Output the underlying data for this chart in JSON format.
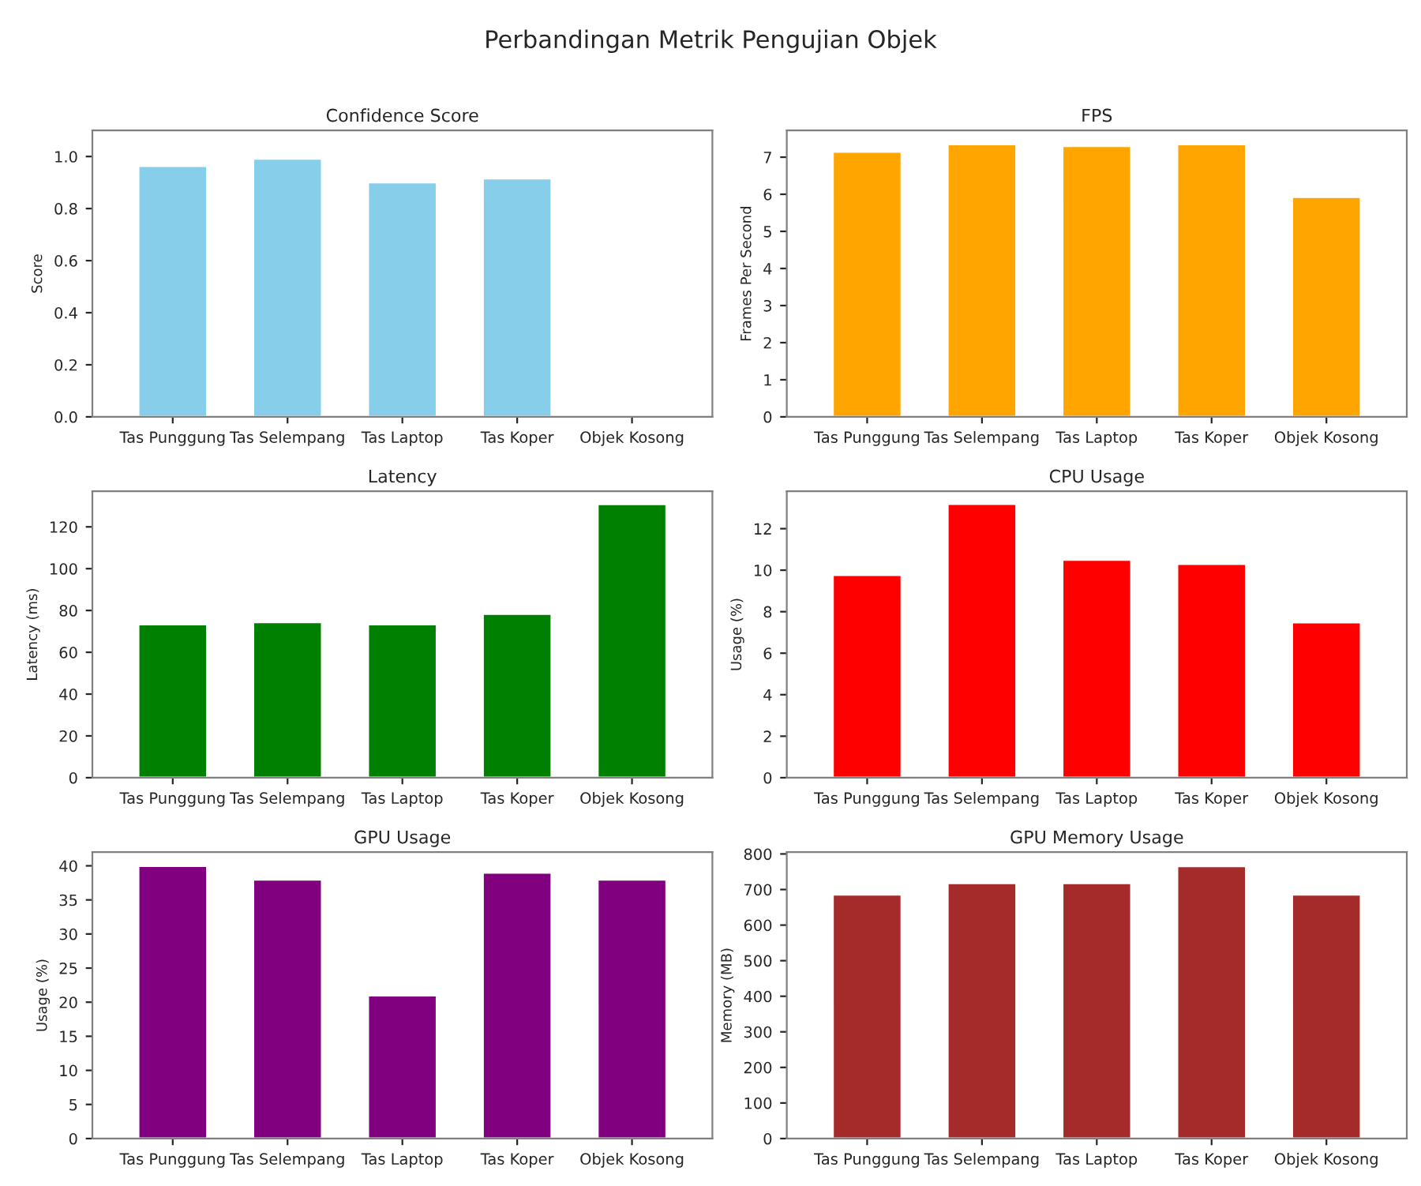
{
  "chart_data": [
    {
      "type": "bar",
      "title": "Confidence Score",
      "ylabel": "Score",
      "categories": [
        "Tas Punggung",
        "Tas Selempang",
        "Tas Laptop",
        "Tas Koper",
        "Objek Kosong"
      ],
      "values": [
        0.964,
        0.992,
        0.901,
        0.916,
        null
      ],
      "color": "#87ceeb",
      "ylim": [
        0,
        1.1
      ],
      "yticks": [
        {
          "value": 0,
          "label": "0.0"
        },
        0.2,
        0.4,
        0.6,
        0.8,
        {
          "value": 1,
          "label": "1.0"
        }
      ],
      "annotations": [
        "Perbandingan Metrik Pengujian Objek"
      ]
    },
    {
      "type": "bar",
      "title": "FPS",
      "ylabel": "Frames Per Second",
      "categories": [
        "Tas Punggung",
        "Tas Selempang",
        "Tas Laptop",
        "Tas Koper",
        "Objek Kosong"
      ],
      "values": [
        7.15,
        7.35,
        7.3,
        7.35,
        5.93
      ],
      "color": "#ffa500",
      "ylim": [
        0,
        7.72
      ],
      "yticks": [
        0,
        1,
        2,
        3,
        4,
        5,
        6,
        7
      ]
    },
    {
      "type": "bar",
      "title": "Latency",
      "ylabel": "Latency (ms)",
      "categories": [
        "Tas Punggung",
        "Tas Selempang",
        "Tas Laptop",
        "Tas Koper",
        "Objek Kosong"
      ],
      "values": [
        73.4,
        74.4,
        73.4,
        78.4,
        130.9
      ],
      "color": "#008000",
      "ylim": [
        0,
        137
      ],
      "yticks": [
        0,
        20,
        40,
        60,
        80,
        100,
        120
      ]
    },
    {
      "type": "bar",
      "title": "CPU Usage",
      "ylabel": "Usage (%)",
      "categories": [
        "Tas Punggung",
        "Tas Selempang",
        "Tas Laptop",
        "Tas Koper",
        "Objek Kosong"
      ],
      "values": [
        9.77,
        13.2,
        10.5,
        10.3,
        7.49
      ],
      "color": "#ff0000",
      "ylim": [
        0,
        13.8
      ],
      "yticks": [
        0,
        2,
        4,
        6,
        8,
        10,
        12
      ]
    },
    {
      "type": "bar",
      "title": "GPU Usage",
      "ylabel": "Usage (%)",
      "categories": [
        "Tas Punggung",
        "Tas Selempang",
        "Tas Laptop",
        "Tas Koper",
        "Objek Kosong"
      ],
      "values": [
        40,
        38,
        21,
        39,
        38
      ],
      "color": "#800080",
      "ylim": [
        0,
        42
      ],
      "yticks": [
        0,
        5,
        10,
        15,
        20,
        25,
        30,
        35,
        40
      ]
    },
    {
      "type": "bar",
      "title": "GPU Memory Usage",
      "ylabel": "Memory (MB)",
      "categories": [
        "Tas Punggung",
        "Tas Selempang",
        "Tas Laptop",
        "Tas Koper",
        "Objek Kosong"
      ],
      "values": [
        686,
        718,
        718,
        766,
        686
      ],
      "color": "#a52a2a",
      "ylim": [
        0,
        805
      ],
      "yticks": [
        0,
        100,
        200,
        300,
        400,
        500,
        600,
        700,
        800
      ]
    }
  ]
}
